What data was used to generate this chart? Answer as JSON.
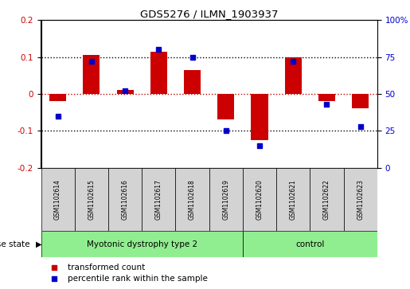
{
  "title": "GDS5276 / ILMN_1903937",
  "samples": [
    "GSM1102614",
    "GSM1102615",
    "GSM1102616",
    "GSM1102617",
    "GSM1102618",
    "GSM1102619",
    "GSM1102620",
    "GSM1102621",
    "GSM1102622",
    "GSM1102623"
  ],
  "red_values": [
    -0.02,
    0.105,
    0.01,
    0.115,
    0.065,
    -0.07,
    -0.125,
    0.1,
    -0.02,
    -0.04
  ],
  "blue_values": [
    35,
    72,
    52,
    80,
    75,
    25,
    15,
    72,
    43,
    28
  ],
  "groups": [
    {
      "label": "Myotonic dystrophy type 2",
      "start": 0,
      "end": 6,
      "color": "#90EE90"
    },
    {
      "label": "control",
      "start": 6,
      "end": 10,
      "color": "#90EE90"
    }
  ],
  "ylim_left": [
    -0.2,
    0.2
  ],
  "ylim_right": [
    0,
    100
  ],
  "red_color": "#CC0000",
  "blue_color": "#0000CC",
  "bar_width": 0.5,
  "disease_state_label": "disease state",
  "legend_red": "transformed count",
  "legend_blue": "percentile rank within the sample",
  "background_color": "#FFFFFF",
  "plot_bg_color": "#FFFFFF",
  "tick_label_color_left": "#CC0000",
  "tick_label_color_right": "#0000CC",
  "box_color": "#D3D3D3",
  "left_yticks": [
    -0.2,
    -0.1,
    0.0,
    0.1,
    0.2
  ],
  "left_yticklabels": [
    "-0.2",
    "-0.1",
    "0",
    "0.1",
    "0.2"
  ],
  "right_yticks": [
    0,
    25,
    50,
    75,
    100
  ],
  "right_yticklabels": [
    "0",
    "25",
    "50",
    "75",
    "100%"
  ]
}
